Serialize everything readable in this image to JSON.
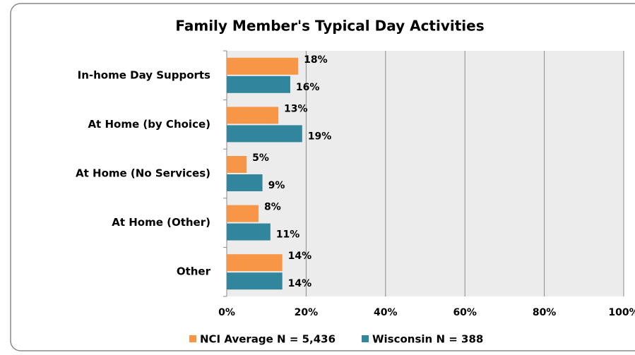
{
  "chart_data": {
    "type": "hbar",
    "title": "Family Member's Typical Day Activities",
    "categories": [
      "In-home Day Supports",
      "At Home (by Choice)",
      "At Home (No Services)",
      "At Home (Other)",
      "Other"
    ],
    "series": [
      {
        "name": "NCI Average N = 5,436",
        "color": "#f79646",
        "values": [
          18,
          13,
          5,
          8,
          14
        ],
        "value_labels": [
          "18%",
          "13%",
          "5%",
          "8%",
          "14%"
        ]
      },
      {
        "name": "Wisconsin N = 388",
        "color": "#31859c",
        "values": [
          16,
          19,
          9,
          11,
          14
        ],
        "value_labels": [
          "16%",
          "19%",
          "9%",
          "11%",
          "14%"
        ]
      }
    ],
    "xlim": [
      0,
      100
    ],
    "xticks": [
      {
        "value": 0,
        "label": "0%"
      },
      {
        "value": 20,
        "label": "20%"
      },
      {
        "value": 40,
        "label": "40%"
      },
      {
        "value": 60,
        "label": "60%"
      },
      {
        "value": 80,
        "label": "80%"
      },
      {
        "value": 100,
        "label": "100%"
      }
    ],
    "grid": true,
    "legend": "bottom"
  }
}
